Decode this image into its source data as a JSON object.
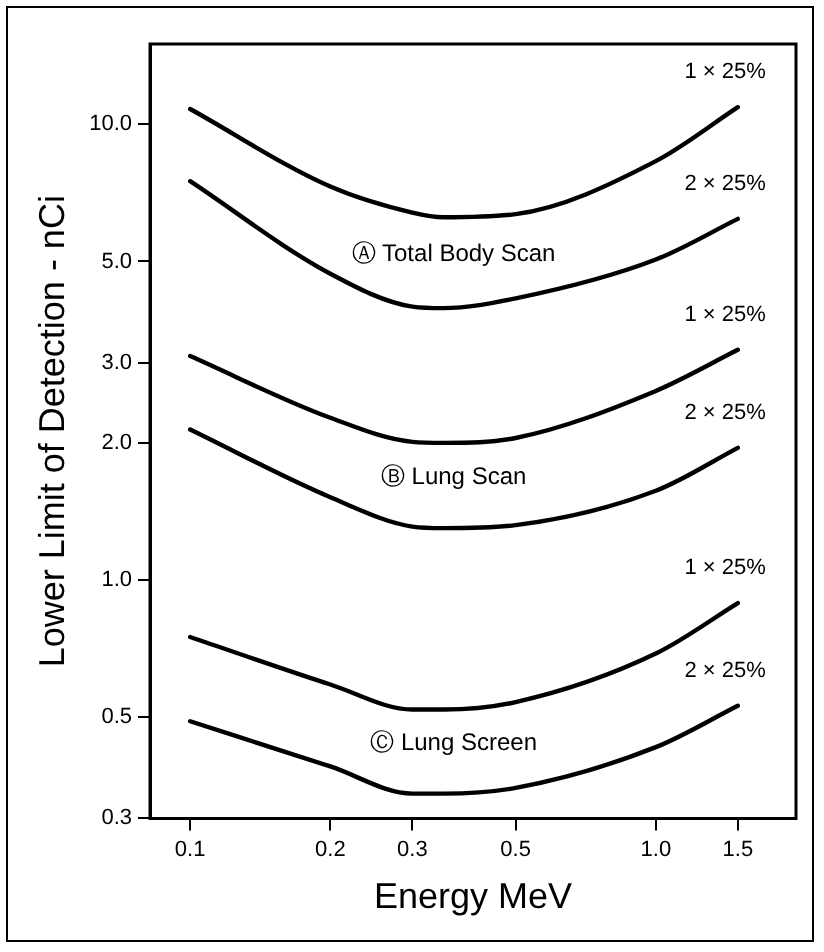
{
  "chart_data": {
    "type": "line",
    "xlabel": "Energy MeV",
    "ylabel": "Lower Limit of Detection - nCi",
    "x": [
      0.1,
      0.2,
      0.3,
      0.35,
      0.5,
      1.0,
      1.5
    ],
    "series": [
      {
        "name": "1 × 25%",
        "color": "#000000",
        "values": [
          10.8,
          7.3,
          6.4,
          6.25,
          6.35,
          8.3,
          10.9
        ]
      },
      {
        "name": "2 × 25%",
        "color": "#000000",
        "values": [
          7.5,
          4.7,
          3.98,
          3.95,
          4.15,
          5.05,
          6.2
        ]
      },
      {
        "name": "1 × 25%",
        "color": "#000000",
        "values": [
          3.1,
          2.27,
          2.01,
          2.0,
          2.05,
          2.6,
          3.2
        ]
      },
      {
        "name": "2 × 25%",
        "color": "#000000",
        "values": [
          2.14,
          1.52,
          1.31,
          1.3,
          1.32,
          1.57,
          1.95
        ]
      },
      {
        "name": "1 × 25%",
        "color": "#000000",
        "values": [
          0.75,
          0.59,
          0.52,
          0.52,
          0.54,
          0.69,
          0.89
        ]
      },
      {
        "name": "2 × 25%",
        "color": "#000000",
        "values": [
          0.49,
          0.39,
          0.34,
          0.34,
          0.35,
          0.43,
          0.53
        ]
      }
    ],
    "annotations": [
      "Ⓐ Total Body Scan",
      "Ⓑ Lung Scan",
      "Ⓒ Lung Screen"
    ],
    "log": "xy",
    "xlim": [
      0.082,
      2.0
    ],
    "ylim": [
      0.3,
      15
    ],
    "xticks": [
      0.1,
      0.2,
      0.3,
      0.5,
      {
        "value": 1.0,
        "label": "1.0"
      },
      1.5
    ],
    "yticks": [
      {
        "value": 0.3,
        "label": "0.3"
      },
      {
        "value": 0.5,
        "label": "0.5"
      },
      {
        "value": 1.0,
        "label": "1.0"
      },
      {
        "value": 2.0,
        "label": "2.0"
      },
      {
        "value": 3.0,
        "label": "3.0"
      },
      {
        "value": 5.0,
        "label": "5.0"
      },
      {
        "value": 10.0,
        "label": "10.0"
      }
    ],
    "grid": false,
    "legend": false,
    "marker": "none",
    "line_style": "solid"
  }
}
